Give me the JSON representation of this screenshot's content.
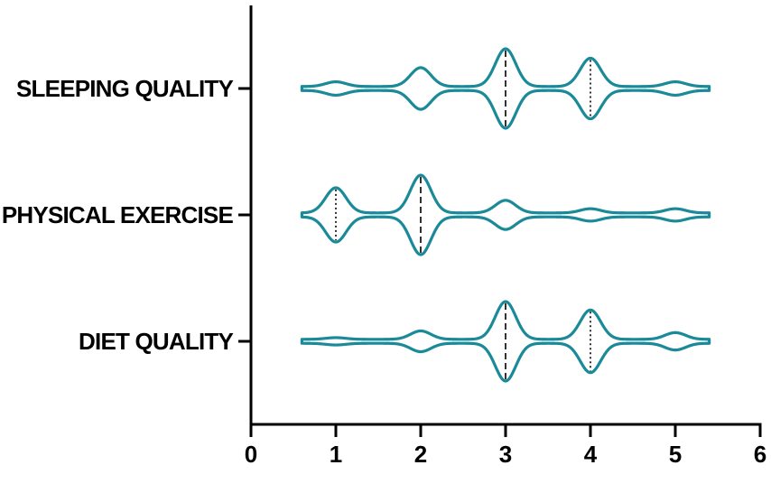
{
  "chart_data": {
    "type": "violin",
    "orientation": "horizontal",
    "color": "#1a8a99",
    "background": "#ffffff",
    "xlim": [
      0,
      6
    ],
    "xticks": [
      "0",
      "1",
      "2",
      "3",
      "4",
      "5",
      "6"
    ],
    "kde_range": [
      0.6,
      5.4
    ],
    "categories": [
      {
        "name": "SLEEPING QUALITY",
        "mass": [
          0.05,
          0.2,
          0.4,
          0.3,
          0.05
        ],
        "median": 3,
        "quartile": 4
      },
      {
        "name": "PHYSICAL EXERCISE",
        "mass": [
          0.3,
          0.45,
          0.15,
          0.05,
          0.05
        ],
        "median": 2,
        "quartile": 1
      },
      {
        "name": "DIET QUALITY",
        "mass": [
          0.02,
          0.1,
          0.45,
          0.35,
          0.08
        ],
        "median": 3,
        "quartile": 4
      }
    ]
  }
}
